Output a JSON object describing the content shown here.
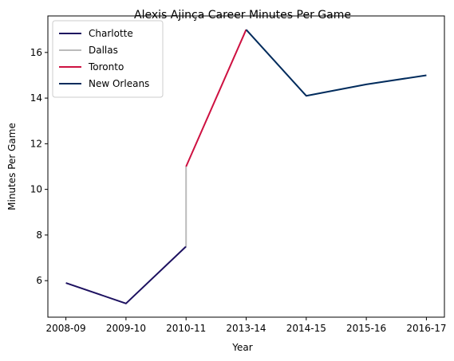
{
  "chart_data": {
    "type": "line",
    "title": "Alexis Ajinça Career Minutes Per Game",
    "xlabel": "Year",
    "ylabel": "Minutes Per Game",
    "categories": [
      "2008-09",
      "2009-10",
      "2010-11",
      "2013-14",
      "2014-15",
      "2015-16",
      "2016-17"
    ],
    "ylim": [
      4.4,
      17.6
    ],
    "yticks": [
      6,
      8,
      10,
      12,
      14,
      16
    ],
    "grid": false,
    "legend_position": "top-left",
    "series": [
      {
        "name": "Charlotte",
        "color": "#1d1160",
        "points": [
          [
            "2008-09",
            5.9
          ],
          [
            "2009-10",
            5.0
          ],
          [
            "2010-11",
            7.5
          ]
        ]
      },
      {
        "name": "Dallas",
        "color": "#bbbbbb",
        "points": [
          [
            "2010-11",
            7.5
          ],
          [
            "2010-11",
            11.0
          ]
        ]
      },
      {
        "name": "Toronto",
        "color": "#ce1141",
        "points": [
          [
            "2010-11",
            11.0
          ],
          [
            "2013-14",
            17.0
          ]
        ]
      },
      {
        "name": "New Orleans",
        "color": "#002b5c",
        "points": [
          [
            "2013-14",
            17.0
          ],
          [
            "2014-15",
            14.1
          ],
          [
            "2015-16",
            14.6
          ],
          [
            "2016-17",
            15.0
          ]
        ]
      }
    ]
  }
}
